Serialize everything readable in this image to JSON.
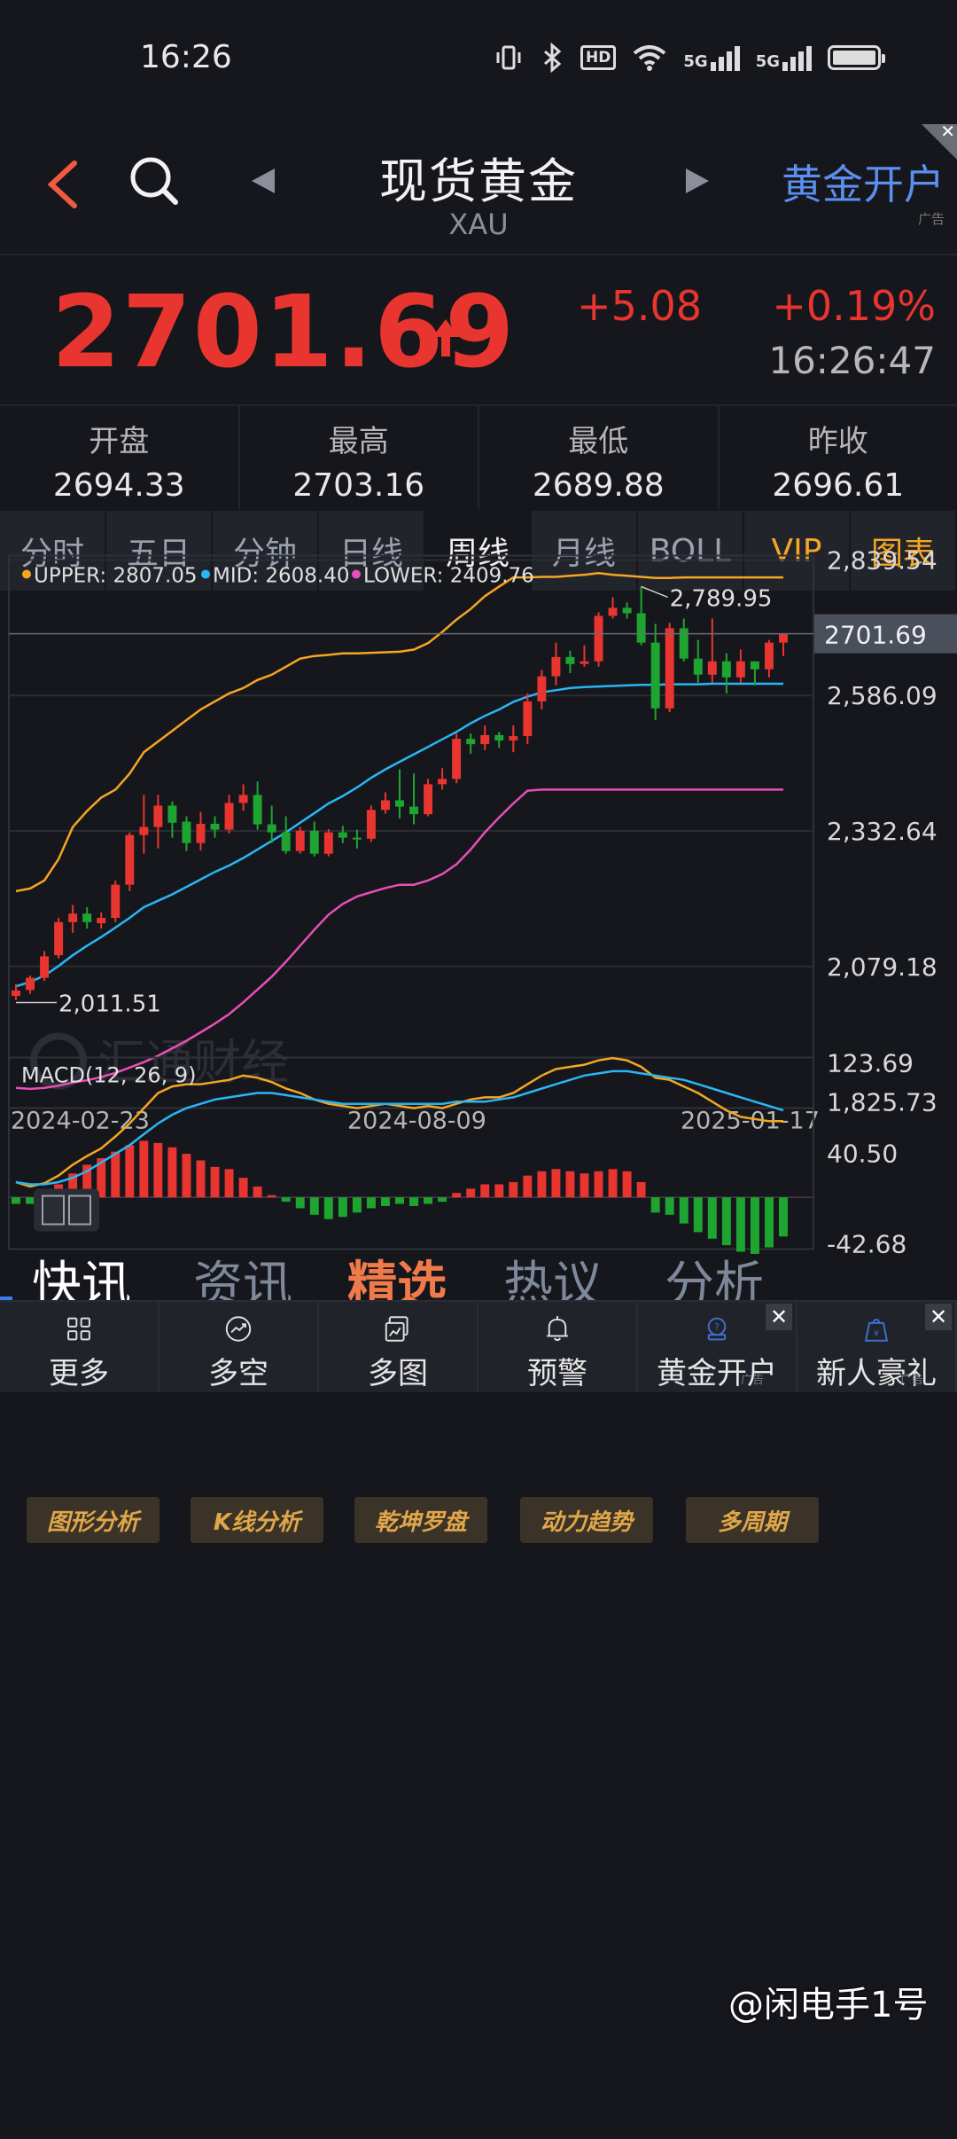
{
  "status": {
    "time": "16:26",
    "net_a": "5G",
    "net_b": "5G",
    "hd": "HD"
  },
  "header": {
    "title": "现货黄金",
    "code": "XAU",
    "ad_link": "黄金开户",
    "ad_label": "广告"
  },
  "price": {
    "last": "2701.69",
    "change": "+5.08",
    "pct": "+0.19%",
    "clock": "16:26:47"
  },
  "ohlc": [
    {
      "label": "开盘",
      "value": "2694.33"
    },
    {
      "label": "最高",
      "value": "2703.16"
    },
    {
      "label": "最低",
      "value": "2689.88"
    },
    {
      "label": "昨收",
      "value": "2696.61"
    }
  ],
  "tabs": [
    {
      "label": "分时",
      "active": false,
      "gold": false,
      "corner": false
    },
    {
      "label": "五日",
      "active": false,
      "gold": false,
      "corner": false
    },
    {
      "label": "分钟",
      "active": false,
      "gold": false,
      "corner": true
    },
    {
      "label": "日线",
      "active": false,
      "gold": false,
      "corner": false
    },
    {
      "label": "周线",
      "active": true,
      "gold": false,
      "corner": false
    },
    {
      "label": "月线",
      "active": false,
      "gold": false,
      "corner": false
    },
    {
      "label": "BOLL",
      "active": false,
      "gold": false,
      "corner": true
    },
    {
      "label": "VIP",
      "active": false,
      "gold": true,
      "corner": true
    },
    {
      "label": "图表",
      "active": false,
      "gold": true,
      "corner": false
    }
  ],
  "chart_data": [
    {
      "type": "candlestick",
      "legend": [
        {
          "label": "UPPER: 2807.05",
          "color": "#f5a623"
        },
        {
          "label": "MID: 2608.40",
          "color": "#29b6f6"
        },
        {
          "label": "LOWER: 2409.76",
          "color": "#e84fb8"
        }
      ],
      "y_ticks": [
        "2,839.54",
        "2,586.09",
        "2,332.64",
        "2,079.18",
        "1,825.73"
      ],
      "ylim": [
        1825.73,
        2839.54
      ],
      "x_ticks": [
        "2024-02-23",
        "2024-08-09",
        "2025-01-17"
      ],
      "last_price_tag": "2701.69",
      "last_price": 2701.69,
      "max_label": "2,789.95",
      "max_value": 2789.95,
      "min_label": "2,011.51",
      "min_value": 2011.51,
      "candles": [
        [
          2024,
          2034,
          2046,
          2016
        ],
        [
          2035,
          2058,
          2062,
          2028
        ],
        [
          2058,
          2098,
          2108,
          2052
        ],
        [
          2100,
          2162,
          2170,
          2094
        ],
        [
          2162,
          2178,
          2194,
          2142
        ],
        [
          2178,
          2162,
          2190,
          2150
        ],
        [
          2160,
          2170,
          2180,
          2150
        ],
        [
          2170,
          2232,
          2240,
          2162
        ],
        [
          2232,
          2325,
          2330,
          2220
        ],
        [
          2325,
          2340,
          2400,
          2290
        ],
        [
          2340,
          2380,
          2400,
          2300
        ],
        [
          2380,
          2348,
          2388,
          2320
        ],
        [
          2350,
          2310,
          2360,
          2295
        ],
        [
          2310,
          2346,
          2368,
          2296
        ],
        [
          2346,
          2335,
          2360,
          2320
        ],
        [
          2335,
          2385,
          2400,
          2328
        ],
        [
          2385,
          2400,
          2420,
          2370
        ],
        [
          2400,
          2345,
          2425,
          2335
        ],
        [
          2345,
          2330,
          2380,
          2310
        ],
        [
          2330,
          2295,
          2360,
          2290
        ],
        [
          2295,
          2333,
          2340,
          2290
        ],
        [
          2333,
          2290,
          2350,
          2285
        ],
        [
          2290,
          2330,
          2336,
          2285
        ],
        [
          2330,
          2320,
          2342,
          2310
        ],
        [
          2320,
          2318,
          2335,
          2300
        ],
        [
          2318,
          2372,
          2380,
          2312
        ],
        [
          2372,
          2390,
          2405,
          2365
        ],
        [
          2390,
          2378,
          2448,
          2356
        ],
        [
          2378,
          2364,
          2440,
          2345
        ],
        [
          2364,
          2420,
          2430,
          2360
        ],
        [
          2420,
          2430,
          2450,
          2410
        ],
        [
          2430,
          2505,
          2515,
          2422
        ],
        [
          2505,
          2495,
          2515,
          2477
        ],
        [
          2495,
          2512,
          2530,
          2484
        ],
        [
          2512,
          2502,
          2518,
          2488
        ],
        [
          2502,
          2510,
          2530,
          2480
        ],
        [
          2510,
          2575,
          2590,
          2495
        ],
        [
          2575,
          2622,
          2634,
          2560
        ],
        [
          2622,
          2658,
          2685,
          2605
        ],
        [
          2658,
          2645,
          2670,
          2628
        ],
        [
          2645,
          2650,
          2680,
          2640
        ],
        [
          2650,
          2735,
          2742,
          2640
        ],
        [
          2735,
          2750,
          2770,
          2730
        ],
        [
          2750,
          2740,
          2760,
          2730
        ],
        [
          2740,
          2685,
          2790,
          2680
        ],
        [
          2685,
          2562,
          2720,
          2540
        ],
        [
          2562,
          2712,
          2722,
          2555
        ],
        [
          2712,
          2655,
          2730,
          2650
        ],
        [
          2655,
          2625,
          2690,
          2610
        ],
        [
          2625,
          2650,
          2730,
          2610
        ],
        [
          2650,
          2620,
          2665,
          2590
        ],
        [
          2620,
          2650,
          2672,
          2610
        ],
        [
          2650,
          2635,
          2650,
          2605
        ],
        [
          2635,
          2685,
          2690,
          2620
        ],
        [
          2685,
          2701.69,
          2703,
          2660
        ]
      ],
      "upper": [
        2220,
        2225,
        2240,
        2280,
        2340,
        2370,
        2395,
        2410,
        2440,
        2480,
        2500,
        2520,
        2540,
        2560,
        2575,
        2590,
        2600,
        2615,
        2625,
        2640,
        2655,
        2660,
        2662,
        2665,
        2665,
        2666,
        2667,
        2668,
        2672,
        2684,
        2705,
        2728,
        2748,
        2772,
        2790,
        2807,
        2807,
        2808,
        2808,
        2810,
        2812,
        2815,
        2812,
        2810,
        2808,
        2806,
        2806,
        2807,
        2807,
        2807,
        2807,
        2807,
        2807,
        2807,
        2807
      ],
      "mid": [
        2042,
        2050,
        2062,
        2080,
        2100,
        2118,
        2134,
        2152,
        2170,
        2190,
        2202,
        2214,
        2228,
        2242,
        2256,
        2268,
        2282,
        2298,
        2314,
        2330,
        2348,
        2366,
        2384,
        2398,
        2414,
        2432,
        2448,
        2462,
        2476,
        2490,
        2504,
        2518,
        2534,
        2548,
        2560,
        2574,
        2584,
        2592,
        2596,
        2600,
        2602,
        2603,
        2604,
        2605,
        2606,
        2606,
        2607,
        2607,
        2607,
        2608,
        2608,
        2608,
        2608,
        2608,
        2608
      ],
      "lower": [
        1852,
        1850,
        1852,
        1856,
        1862,
        1866,
        1872,
        1880,
        1890,
        1900,
        1912,
        1926,
        1940,
        1956,
        1972,
        1990,
        2012,
        2036,
        2060,
        2088,
        2118,
        2148,
        2176,
        2196,
        2210,
        2218,
        2226,
        2232,
        2232,
        2240,
        2252,
        2270,
        2298,
        2330,
        2358,
        2384,
        2408,
        2410,
        2410,
        2410,
        2410,
        2410,
        2410,
        2410,
        2410,
        2410,
        2410,
        2410,
        2410,
        2410,
        2410,
        2410,
        2410,
        2410,
        2410
      ]
    },
    {
      "type": "macd",
      "title": "MACD(12, 26, 9)",
      "y_ticks": [
        "123.69",
        "40.50",
        "-42.68"
      ],
      "ylim": [
        -42.68,
        123.69
      ],
      "dif": [
        14,
        10,
        13,
        20,
        30,
        38,
        45,
        56,
        68,
        82,
        96,
        102,
        104,
        104,
        106,
        108,
        112,
        110,
        106,
        100,
        96,
        90,
        86,
        84,
        82,
        84,
        86,
        84,
        82,
        84,
        82,
        86,
        90,
        92,
        92,
        96,
        104,
        112,
        118,
        120,
        122,
        126,
        128,
        126,
        120,
        110,
        108,
        102,
        96,
        88,
        80,
        74,
        72,
        70,
        70
      ],
      "dea": [
        14,
        12,
        12,
        14,
        18,
        24,
        32,
        40,
        48,
        58,
        68,
        76,
        82,
        86,
        90,
        92,
        94,
        96,
        96,
        94,
        92,
        90,
        88,
        86,
        86,
        86,
        86,
        86,
        86,
        86,
        86,
        88,
        88,
        88,
        90,
        92,
        96,
        100,
        104,
        108,
        112,
        114,
        116,
        116,
        114,
        112,
        110,
        108,
        104,
        100,
        96,
        92,
        88,
        84,
        80
      ],
      "hist": [
        -6,
        -6,
        2,
        12,
        22,
        30,
        36,
        42,
        48,
        52,
        50,
        46,
        40,
        34,
        28,
        26,
        18,
        10,
        2,
        -4,
        -10,
        -16,
        -20,
        -18,
        -14,
        -10,
        -8,
        -6,
        -8,
        -6,
        -4,
        4,
        8,
        12,
        12,
        14,
        20,
        24,
        26,
        24,
        22,
        24,
        26,
        24,
        14,
        -14,
        -16,
        -24,
        -32,
        -38,
        -44,
        -50,
        -52,
        -46,
        -36
      ]
    }
  ],
  "watermark": "汇通财经",
  "tools": [
    "图形分析",
    "K线分析",
    "乾坤罗盘",
    "动力趋势",
    "多周期"
  ],
  "news_tabs": [
    {
      "label": "快讯",
      "style": "active"
    },
    {
      "label": "资讯",
      "style": ""
    },
    {
      "label": "精选",
      "style": "hot"
    },
    {
      "label": "热议",
      "style": ""
    },
    {
      "label": "分析",
      "style": ""
    }
  ],
  "nav": [
    {
      "label": "更多",
      "icon": "grid-icon"
    },
    {
      "label": "多空",
      "icon": "bull-bear-icon"
    },
    {
      "label": "多图",
      "icon": "multi-chart-icon"
    },
    {
      "label": "预警",
      "icon": "bell-icon"
    },
    {
      "label": "黄金开户",
      "icon": "gold-account-icon"
    },
    {
      "label": "新人豪礼",
      "icon": "gift-bag-icon"
    }
  ],
  "overlay_text": "@闲电手1号",
  "ad_small": "广告"
}
